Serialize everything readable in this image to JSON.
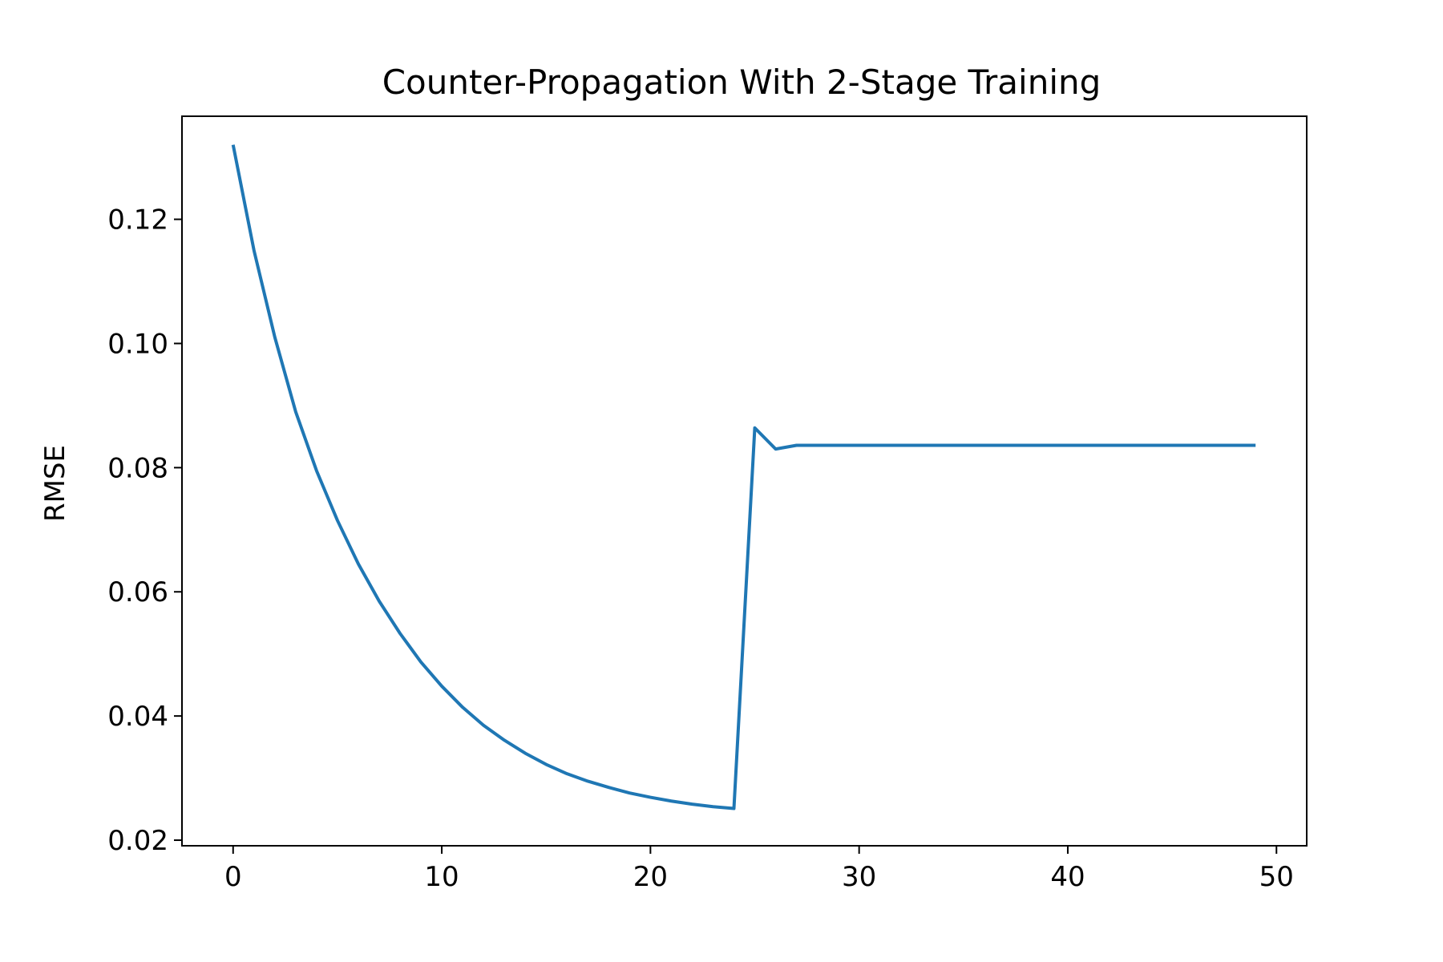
{
  "chart_data": {
    "type": "line",
    "title": "Counter-Propagation With 2-Stage Training",
    "xlabel": "",
    "ylabel": "RMSE",
    "xlim": [
      -2.45,
      51.45
    ],
    "ylim": [
      0.0191,
      0.1366
    ],
    "x_ticks": [
      0,
      10,
      20,
      30,
      40,
      50
    ],
    "x_tick_labels": [
      "0",
      "10",
      "20",
      "30",
      "40",
      "50"
    ],
    "y_ticks": [
      0.02,
      0.04,
      0.06,
      0.08,
      0.1,
      0.12
    ],
    "y_tick_labels": [
      "0.02",
      "0.04",
      "0.06",
      "0.08",
      "0.10",
      "0.12"
    ],
    "grid": false,
    "legend": "none",
    "series": [
      {
        "color": "#1f77b4",
        "x": [
          0,
          1,
          2,
          3,
          4,
          5,
          6,
          7,
          8,
          9,
          10,
          11,
          12,
          13,
          14,
          15,
          16,
          17,
          18,
          19,
          20,
          21,
          22,
          23,
          24,
          25,
          26,
          27,
          28,
          29,
          30,
          31,
          32,
          33,
          34,
          35,
          36,
          37,
          38,
          39,
          40,
          41,
          42,
          43,
          44,
          45,
          46,
          47,
          48,
          49
        ],
        "y": [
          0.132,
          0.115,
          0.101,
          0.089,
          0.0795,
          0.0715,
          0.0645,
          0.0585,
          0.0533,
          0.0487,
          0.0448,
          0.0414,
          0.0385,
          0.0361,
          0.034,
          0.0322,
          0.0307,
          0.0295,
          0.0285,
          0.0276,
          0.0269,
          0.0263,
          0.0258,
          0.0254,
          0.0251,
          0.0864,
          0.083,
          0.0836,
          0.0836,
          0.0836,
          0.0836,
          0.0836,
          0.0836,
          0.0836,
          0.0836,
          0.0836,
          0.0836,
          0.0836,
          0.0836,
          0.0836,
          0.0836,
          0.0836,
          0.0836,
          0.0836,
          0.0836,
          0.0836,
          0.0836,
          0.0836,
          0.0836,
          0.0836
        ]
      }
    ]
  }
}
